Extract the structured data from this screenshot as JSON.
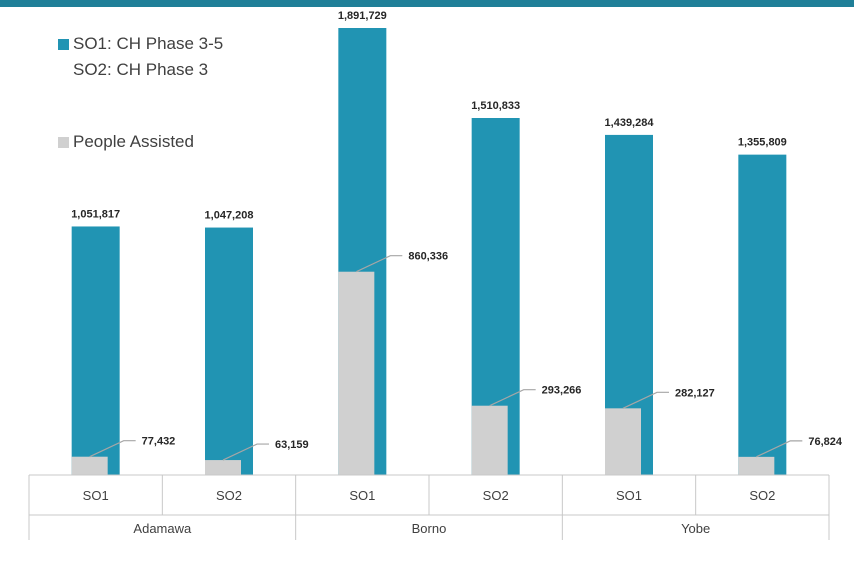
{
  "colors": {
    "series1": "#2194b3",
    "series2": "#d0d0d0",
    "band": "#1f7f98",
    "axis": "#c8c8c8",
    "leader": "#a6a6a6"
  },
  "legend": {
    "series1_line1": "SO1: CH Phase 3-5",
    "series1_line2": "SO2: CH Phase 3",
    "series2": "People Assisted"
  },
  "chart_data": {
    "type": "bar",
    "categories": [
      "SO1",
      "SO2",
      "SO1",
      "SO2",
      "SO1",
      "SO2"
    ],
    "groups": [
      {
        "label": "Adamawa",
        "categories": [
          "SO1",
          "SO2"
        ]
      },
      {
        "label": "Borno",
        "categories": [
          "SO1",
          "SO2"
        ]
      },
      {
        "label": "Yobe",
        "categories": [
          "SO1",
          "SO2"
        ]
      }
    ],
    "series": [
      {
        "name": "SO1: CH Phase 3-5 / SO2: CH Phase 3",
        "values": [
          1051817,
          1047208,
          1891729,
          1510833,
          1439284,
          1355809
        ],
        "labels": [
          "1,051,817",
          "1,047,208",
          "1,891,729",
          "1,510,833",
          "1,439,284",
          "1,355,809"
        ]
      },
      {
        "name": "People Assisted",
        "values": [
          77432,
          63159,
          860336,
          293266,
          282127,
          76824
        ],
        "labels": [
          "77,432",
          "63,159",
          "860,336",
          "293,266",
          "282,127",
          "76,824"
        ]
      }
    ],
    "ylim": [
      0,
      1891729
    ],
    "grid": false,
    "legend_position": "top-left"
  }
}
